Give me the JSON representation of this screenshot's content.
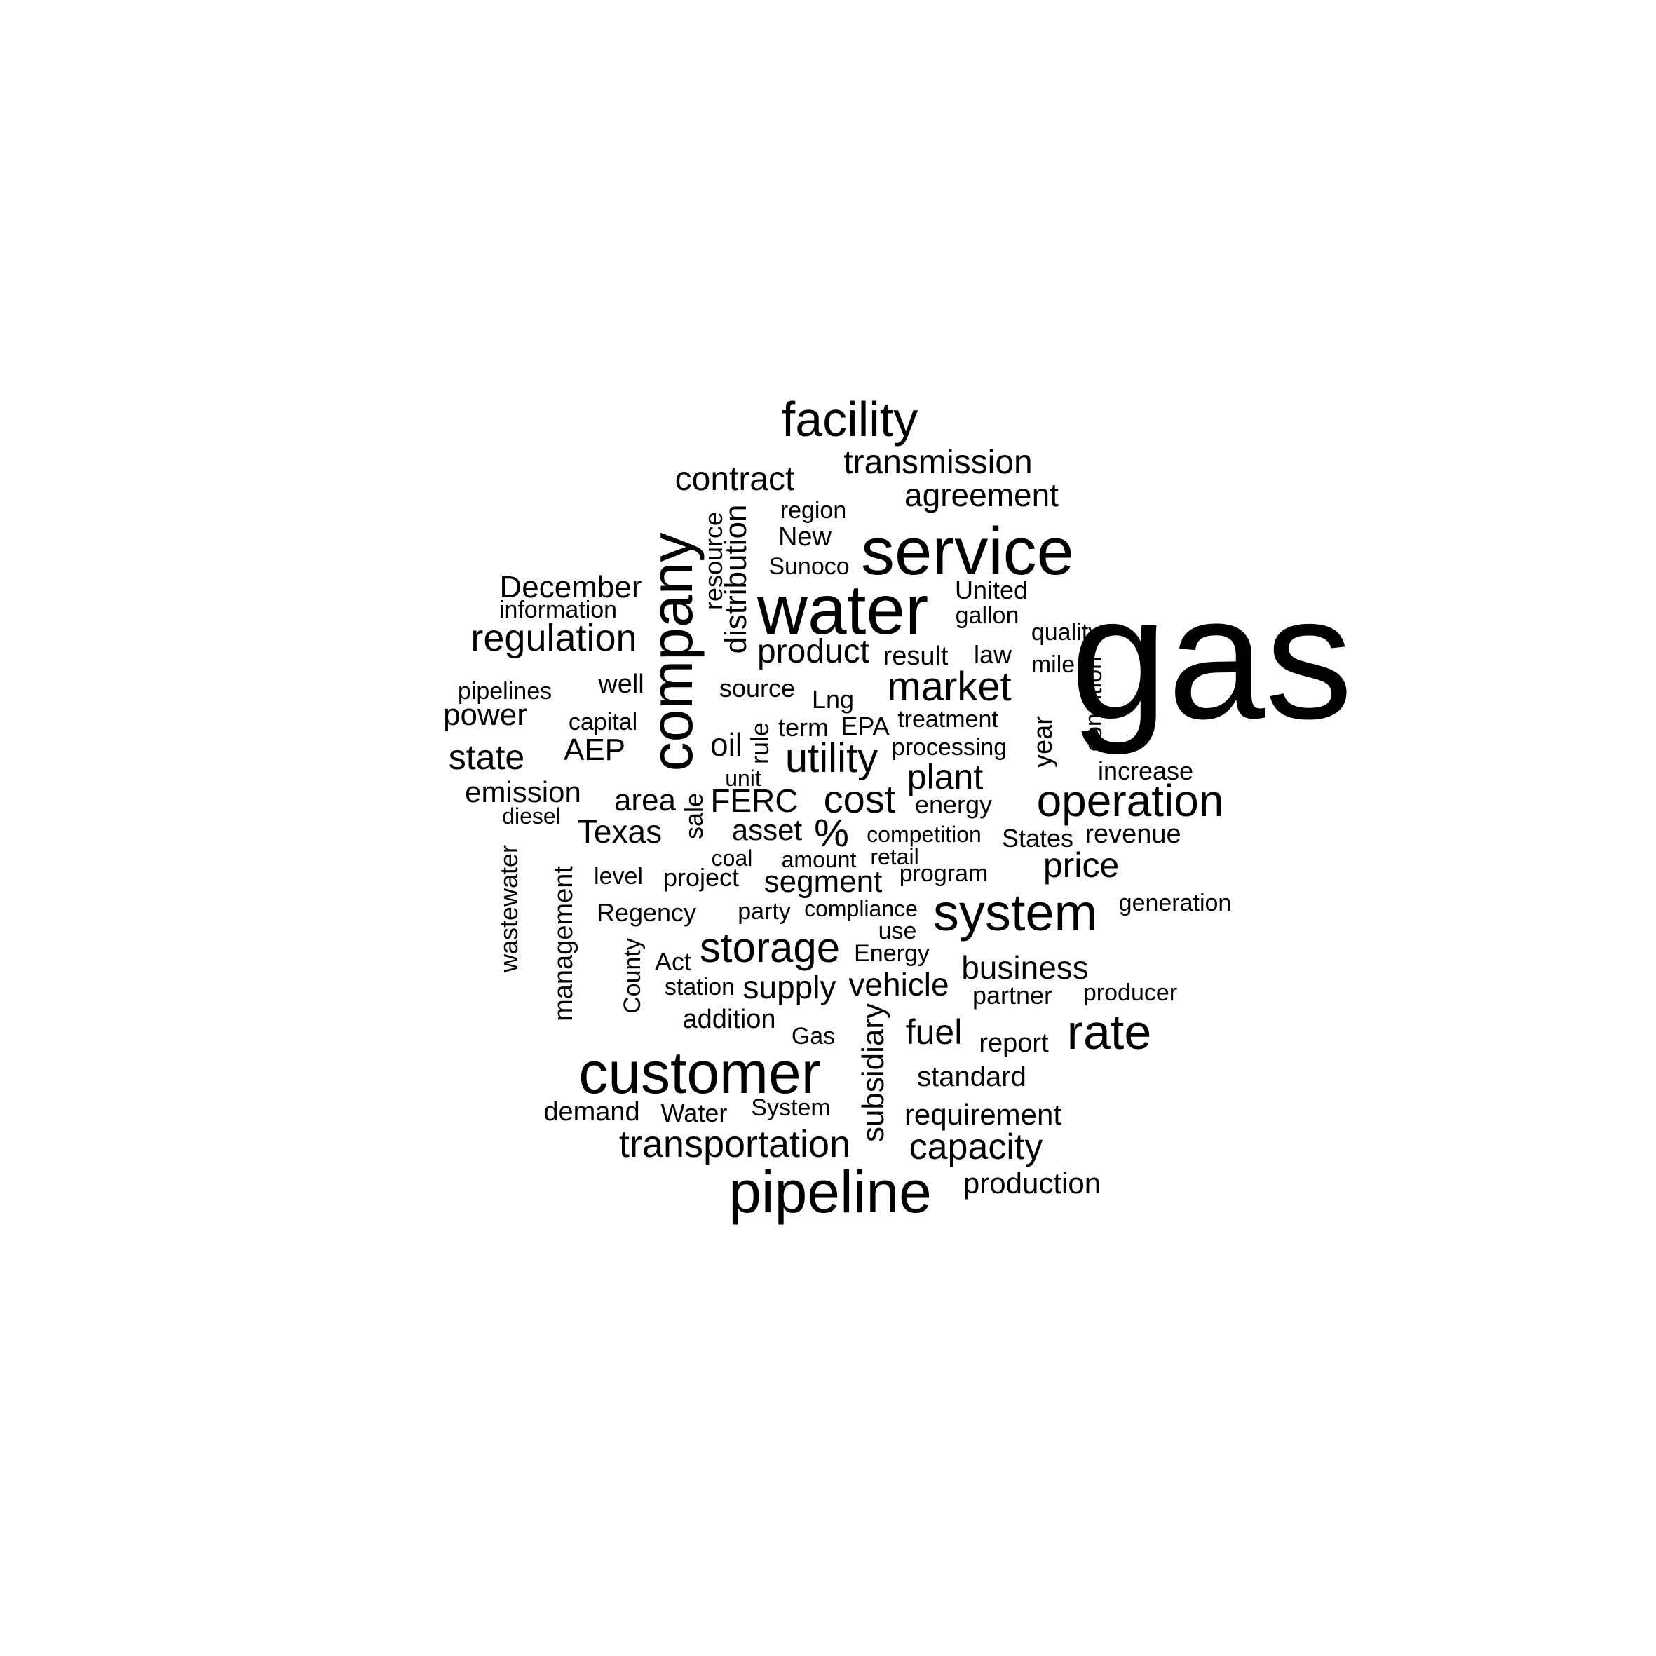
{
  "text_color": "#000000",
  "background_color": "#ffffff",
  "words": [
    {
      "text": "gas"
    },
    {
      "text": "water"
    },
    {
      "text": "service"
    },
    {
      "text": "company"
    },
    {
      "text": "customer"
    },
    {
      "text": "pipeline"
    },
    {
      "text": "system"
    },
    {
      "text": "facility"
    },
    {
      "text": "operation"
    },
    {
      "text": "rate"
    },
    {
      "text": "storage"
    },
    {
      "text": "market"
    },
    {
      "text": "utility"
    },
    {
      "text": "regulation"
    },
    {
      "text": "transportation"
    },
    {
      "text": "transmission"
    },
    {
      "text": "contract"
    },
    {
      "text": "agreement"
    },
    {
      "text": "cost"
    },
    {
      "text": "plant"
    },
    {
      "text": "capacity"
    },
    {
      "text": "product"
    },
    {
      "text": "state"
    },
    {
      "text": "December"
    },
    {
      "text": "distribution"
    },
    {
      "text": "price"
    },
    {
      "text": "business"
    },
    {
      "text": "fuel"
    },
    {
      "text": "supply"
    },
    {
      "text": "Texas"
    },
    {
      "text": "area"
    },
    {
      "text": "FERC"
    },
    {
      "text": "vehicle"
    },
    {
      "text": "emission"
    },
    {
      "text": "power"
    },
    {
      "text": "AEP"
    },
    {
      "text": "segment"
    },
    {
      "text": "asset"
    },
    {
      "text": "oil"
    },
    {
      "text": "%"
    },
    {
      "text": "requirement"
    },
    {
      "text": "production"
    },
    {
      "text": "standard"
    },
    {
      "text": "New"
    },
    {
      "text": "resource"
    },
    {
      "text": "subsidiary"
    },
    {
      "text": "management"
    },
    {
      "text": "wastewater"
    },
    {
      "text": "year"
    },
    {
      "text": "result"
    },
    {
      "text": "United"
    },
    {
      "text": "revenue"
    },
    {
      "text": "well"
    },
    {
      "text": "source"
    },
    {
      "text": "Lng"
    },
    {
      "text": "term"
    },
    {
      "text": "EPA"
    },
    {
      "text": "treatment"
    },
    {
      "text": "processing"
    },
    {
      "text": "energy"
    },
    {
      "text": "increase"
    },
    {
      "text": "condition"
    },
    {
      "text": "quality"
    },
    {
      "text": "mile"
    },
    {
      "text": "law"
    },
    {
      "text": "gallon"
    },
    {
      "text": "Sunoco"
    },
    {
      "text": "region"
    },
    {
      "text": "information"
    },
    {
      "text": "pipelines"
    },
    {
      "text": "capital"
    },
    {
      "text": "rule"
    },
    {
      "text": "unit"
    },
    {
      "text": "diesel"
    },
    {
      "text": "sale"
    },
    {
      "text": "competition"
    },
    {
      "text": "States"
    },
    {
      "text": "coal"
    },
    {
      "text": "amount"
    },
    {
      "text": "retail"
    },
    {
      "text": "level"
    },
    {
      "text": "project"
    },
    {
      "text": "program"
    },
    {
      "text": "Regency"
    },
    {
      "text": "party"
    },
    {
      "text": "compliance"
    },
    {
      "text": "use"
    },
    {
      "text": "generation"
    },
    {
      "text": "Act"
    },
    {
      "text": "Energy"
    },
    {
      "text": "County"
    },
    {
      "text": "station"
    },
    {
      "text": "partner"
    },
    {
      "text": "producer"
    },
    {
      "text": "addition"
    },
    {
      "text": "Gas"
    },
    {
      "text": "report"
    },
    {
      "text": "demand"
    },
    {
      "text": "Water"
    },
    {
      "text": "System"
    }
  ]
}
